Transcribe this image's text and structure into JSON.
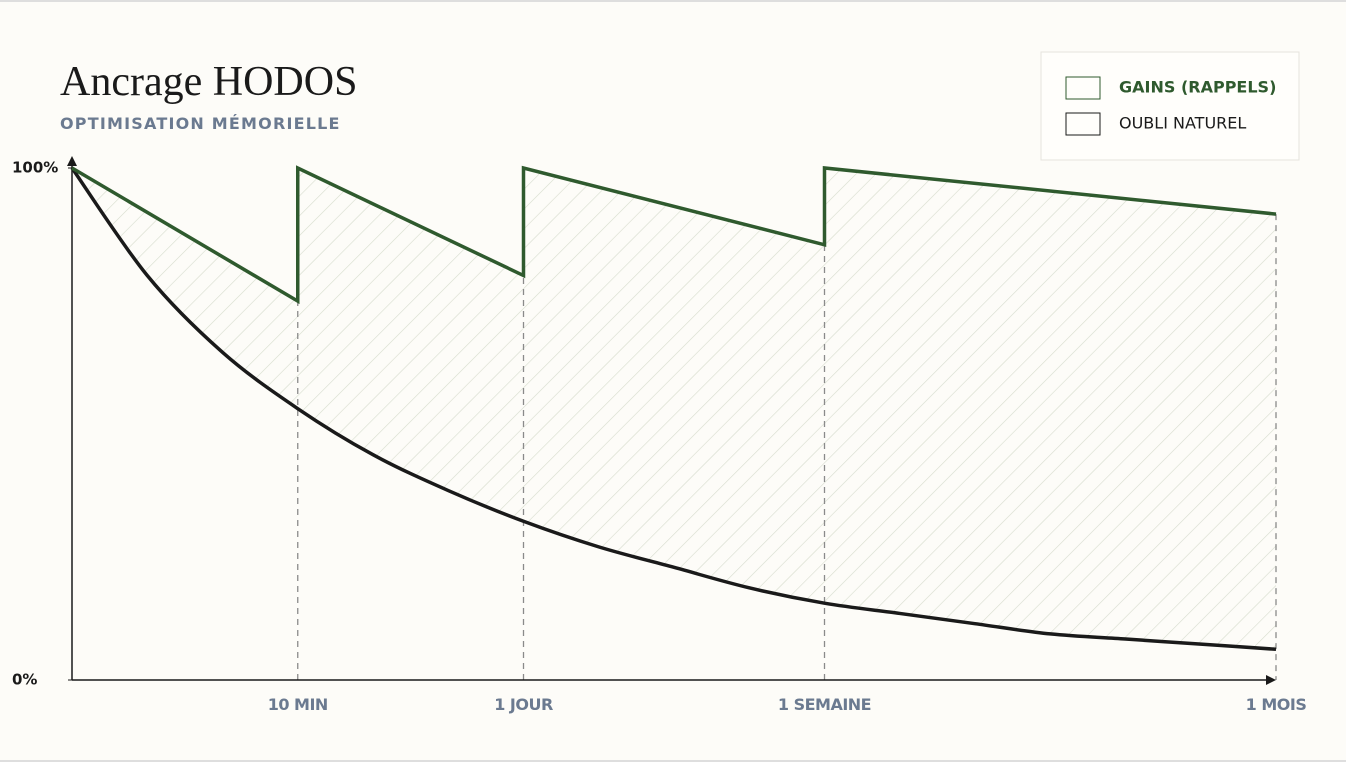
{
  "chart_data": {
    "type": "line",
    "title": "Ancrage HODOS",
    "subtitle": "OPTIMISATION MÉMORIELLE",
    "xlim": [
      0,
      16
    ],
    "xticks": [
      {
        "value": 3,
        "label": "10 MIN"
      },
      {
        "value": 6,
        "label": "1 JOUR"
      },
      {
        "value": 10,
        "label": "1 SEMAINE"
      },
      {
        "value": 16,
        "label": "1 MOIS"
      }
    ],
    "ylim": [
      0,
      100
    ],
    "yticks": [
      {
        "value": 0,
        "label": "0%"
      },
      {
        "value": 100,
        "label": "100%"
      }
    ],
    "series": [
      {
        "name": "GAINS (RAPPELS)",
        "color": "#2f5a2e",
        "smooth": false,
        "x": [
          0,
          3,
          3,
          6,
          6,
          10,
          10,
          16
        ],
        "values": [
          100,
          74,
          100,
          79,
          100,
          85,
          100,
          91
        ]
      },
      {
        "name": "OUBLI NATUREL",
        "color": "#1a1a1a",
        "smooth": true,
        "x": [
          0,
          1,
          2,
          3,
          4,
          5,
          6,
          7,
          8,
          9,
          10,
          11,
          12,
          13,
          14,
          15,
          16
        ],
        "values": [
          100,
          79,
          64,
          53,
          44,
          37,
          31,
          26,
          22,
          18,
          15,
          13,
          11,
          9,
          8,
          7,
          6
        ]
      }
    ]
  }
}
